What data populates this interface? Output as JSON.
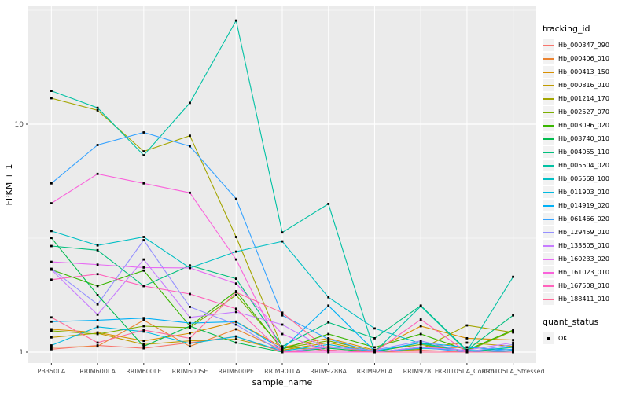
{
  "chart_data": {
    "type": "line",
    "title": "",
    "xlabel": "sample_name",
    "ylabel": "FPKM + 1",
    "x_categories": [
      "PB350LA",
      "RRIM600LA",
      "RRIM600LE",
      "RRIM600SE",
      "RRIM600PE",
      "RRIM901LA",
      "RRIM928BA",
      "RRIM928LA",
      "RRIM928LE",
      "RRII105LA_Control",
      "RRII105LA_Stressed"
    ],
    "yticks": [
      1,
      10
    ],
    "ylog": true,
    "ylim": [
      0.89,
      32
    ],
    "grid": "white major+minor on grey panel",
    "legend_position": "right",
    "point_marker": "black-square",
    "series": [
      {
        "name": "Hb_000347_090",
        "color": "#F8766D",
        "values": [
          1.03,
          1.07,
          1.04,
          1.1,
          1.17,
          1.0,
          1.06,
          1.0,
          1.02,
          1.0,
          1.0
        ]
      },
      {
        "name": "Hb_000406_010",
        "color": "#EA8331",
        "values": [
          1.05,
          1.06,
          1.38,
          1.06,
          1.26,
          1.02,
          1.1,
          1.0,
          1.04,
          1.05,
          1.02
        ]
      },
      {
        "name": "Hb_000413_150",
        "color": "#D89000",
        "values": [
          1.26,
          1.22,
          1.12,
          1.21,
          1.36,
          1.05,
          1.15,
          1.02,
          1.3,
          1.15,
          1.13
        ]
      },
      {
        "name": "Hb_000816_010",
        "color": "#C09B00",
        "values": [
          1.16,
          1.21,
          1.08,
          1.12,
          1.14,
          1.02,
          1.1,
          1.0,
          1.05,
          1.1,
          1.06
        ]
      },
      {
        "name": "Hb_001214_170",
        "color": "#A3A500",
        "values": [
          13.0,
          11.5,
          7.6,
          8.9,
          3.2,
          1.05,
          1.02,
          1.0,
          1.03,
          1.31,
          1.22
        ]
      },
      {
        "name": "Hb_002527_070",
        "color": "#7CAE00",
        "values": [
          1.24,
          1.2,
          1.3,
          1.28,
          1.78,
          1.04,
          1.12,
          1.01,
          1.08,
          1.01,
          1.24
        ]
      },
      {
        "name": "Hb_003096_020",
        "color": "#39B600",
        "values": [
          2.3,
          1.95,
          2.28,
          1.3,
          1.85,
          1.03,
          1.2,
          1.05,
          1.2,
          1.02,
          1.25
        ]
      },
      {
        "name": "Hb_003740_010",
        "color": "#00BB4E",
        "values": [
          3.17,
          1.78,
          1.06,
          1.3,
          1.1,
          1.0,
          1.04,
          1.0,
          1.1,
          1.0,
          1.05
        ]
      },
      {
        "name": "Hb_004055_110",
        "color": "#00BF7D",
        "values": [
          2.92,
          2.8,
          1.95,
          2.4,
          2.1,
          1.06,
          1.35,
          1.15,
          1.6,
          1.02,
          1.45
        ]
      },
      {
        "name": "Hb_005504_020",
        "color": "#00C1A3",
        "values": [
          14.0,
          11.8,
          7.3,
          12.4,
          28.5,
          3.35,
          4.47,
          1.0,
          1.59,
          1.01,
          2.14
        ]
      },
      {
        "name": "Hb_005568_100",
        "color": "#00BFC4",
        "values": [
          3.4,
          2.94,
          3.2,
          2.34,
          2.76,
          3.06,
          1.74,
          1.27,
          1.09,
          1.01,
          1.05
        ]
      },
      {
        "name": "Hb_011903_010",
        "color": "#00BAE0",
        "values": [
          1.07,
          1.29,
          1.23,
          1.09,
          1.17,
          1.01,
          1.08,
          1.0,
          1.04,
          1.02,
          1.0
        ]
      },
      {
        "name": "Hb_014919_020",
        "color": "#00B0F6",
        "values": [
          1.36,
          1.38,
          1.41,
          1.34,
          1.36,
          1.03,
          1.6,
          1.01,
          1.1,
          1.05,
          1.02
        ]
      },
      {
        "name": "Hb_061466_020",
        "color": "#35A2FF",
        "values": [
          5.5,
          8.1,
          9.2,
          8.0,
          4.7,
          1.45,
          1.14,
          1.0,
          1.05,
          1.0,
          1.03
        ]
      },
      {
        "name": "Hb_129459_010",
        "color": "#9590FF",
        "values": [
          2.32,
          1.62,
          3.1,
          1.58,
          1.32,
          1.0,
          1.05,
          1.02,
          1.12,
          1.0,
          1.08
        ]
      },
      {
        "name": "Hb_133605_010",
        "color": "#C77CFF",
        "values": [
          2.3,
          1.46,
          2.55,
          1.42,
          1.5,
          1.32,
          1.02,
          1.0,
          1.05,
          1.02,
          1.1
        ]
      },
      {
        "name": "Hb_160233_020",
        "color": "#E76BF3",
        "values": [
          2.49,
          2.42,
          2.35,
          2.34,
          2.0,
          1.2,
          1.0,
          1.0,
          1.0,
          1.0,
          1.0
        ]
      },
      {
        "name": "Hb_161023_010",
        "color": "#FA62DB",
        "values": [
          4.5,
          6.05,
          5.5,
          5.0,
          2.55,
          1.0,
          1.0,
          1.0,
          1.0,
          1.0,
          1.0
        ]
      },
      {
        "name": "Hb_167508_010",
        "color": "#FF62BC",
        "values": [
          2.08,
          2.2,
          1.95,
          1.8,
          1.55,
          1.0,
          1.02,
          1.0,
          1.39,
          1.0,
          1.0
        ]
      },
      {
        "name": "Hb_188411_010",
        "color": "#FF6A98",
        "values": [
          1.42,
          1.1,
          1.25,
          1.15,
          1.83,
          1.49,
          1.02,
          1.0,
          1.0,
          1.0,
          1.0
        ]
      }
    ],
    "legend": {
      "tracking_title": "tracking_id",
      "quant_title": "quant_status",
      "quant_items": [
        "OK"
      ]
    },
    "colors": {
      "panel_bg": "#EBEBEB",
      "grid": "#FFFFFF",
      "point": "#000000",
      "tick_text": "#4D4D4D",
      "axis_title": "#000000",
      "legend_key_bg": "#F2F2F2"
    }
  }
}
